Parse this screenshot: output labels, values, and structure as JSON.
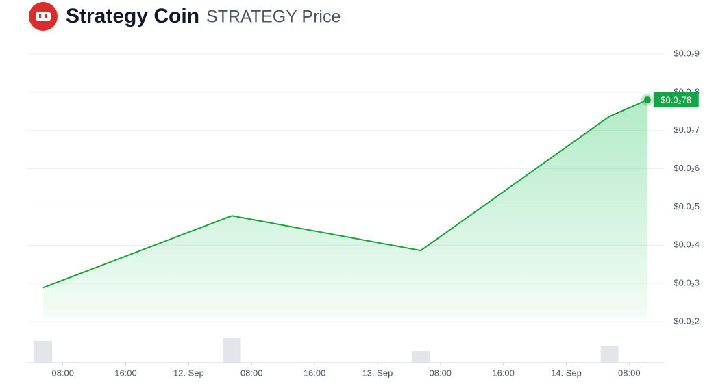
{
  "chart_data": {
    "type": "line",
    "title": "Strategy Coin",
    "subtitle": "STRATEGY Price",
    "x": [
      5.5,
      29.5,
      53.5,
      77.5,
      82.3
    ],
    "series": [
      {
        "name": "Price",
        "color": "#1aa33a",
        "values": [
          0.00289,
          0.00477,
          0.00386,
          0.00737,
          0.0078
        ],
        "value_labels": [
          null,
          null,
          null,
          null,
          "$0.0₂78"
        ]
      }
    ],
    "volume": {
      "color": "#e2e6ea",
      "values": [
        32,
        36,
        17,
        25
      ]
    },
    "xlim": [
      3.5,
      84.5
    ],
    "xticks": [
      {
        "value": 8,
        "label": "08:00"
      },
      {
        "value": 16,
        "label": "16:00"
      },
      {
        "value": 24,
        "label": "12. Sep"
      },
      {
        "value": 32,
        "label": "08:00"
      },
      {
        "value": 40,
        "label": "16:00"
      },
      {
        "value": 48,
        "label": "13. Sep"
      },
      {
        "value": 56,
        "label": "08:00"
      },
      {
        "value": 64,
        "label": "16:00"
      },
      {
        "value": 72,
        "label": "14. Sep"
      },
      {
        "value": 80,
        "label": "08:00"
      }
    ],
    "ylim": [
      0.002,
      0.009
    ],
    "yticks": [
      {
        "value": 0.009,
        "label": "$0.0₂9"
      },
      {
        "value": 0.008,
        "label": "$0.0₂8"
      },
      {
        "value": 0.007,
        "label": "$0.0₂7"
      },
      {
        "value": 0.006,
        "label": "$0.0₂6"
      },
      {
        "value": 0.005,
        "label": "$0.0₂5"
      },
      {
        "value": 0.004,
        "label": "$0.0₂4"
      },
      {
        "value": 0.003,
        "label": "$0.0₂3"
      },
      {
        "value": 0.002,
        "label": "$0.0₂2"
      }
    ],
    "grid": true
  }
}
